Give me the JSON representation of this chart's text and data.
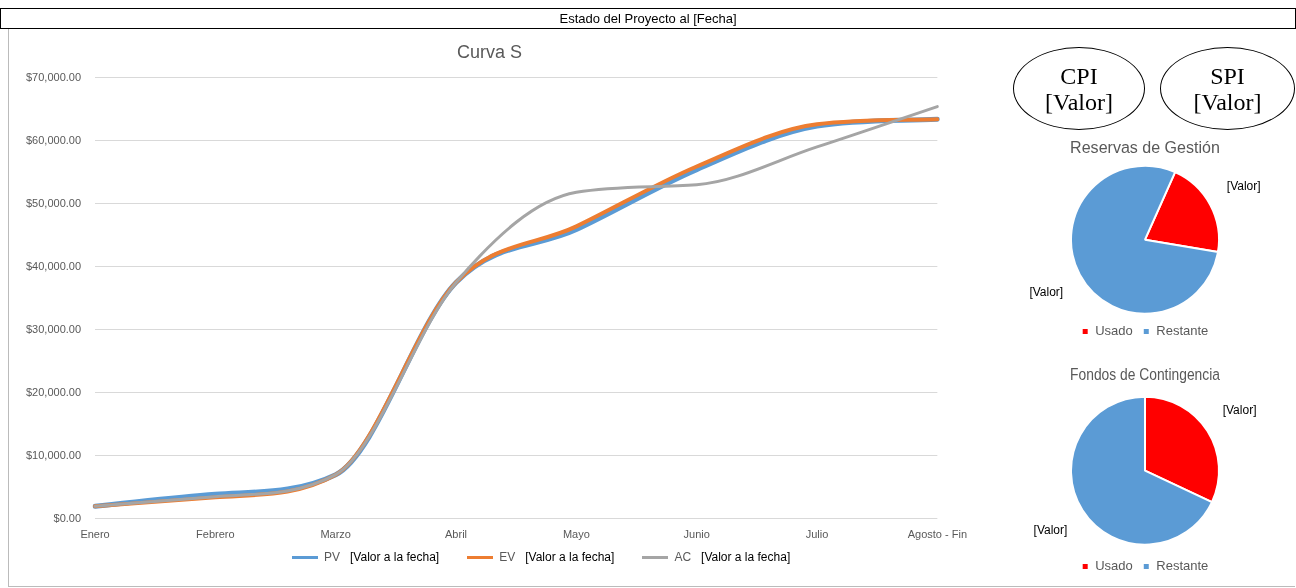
{
  "chart_data": [
    {
      "type": "other",
      "title": "Estado del Proyecto al [Fecha]",
      "annotations": [
        "CPI [Valor]",
        "SPI [Valor]"
      ]
    },
    {
      "type": "line",
      "title": "Curva S",
      "categories": [
        "Enero",
        "Febrero",
        "Marzo",
        "Abril",
        "Mayo",
        "Junio",
        "Julio",
        "Agosto - Fin"
      ],
      "series": [
        {
          "name": "PV",
          "color": "#5b9bd5",
          "values": [
            2000,
            3900,
            7000,
            37500,
            45900,
            55400,
            62300,
            63400
          ]
        },
        {
          "name": "EV",
          "color": "#ed7d31",
          "values": [
            2000,
            3400,
            7000,
            37500,
            46400,
            55900,
            62600,
            63400
          ]
        },
        {
          "name": "AC",
          "color": "#a5a5a5",
          "values": [
            2000,
            3500,
            7000,
            37500,
            51800,
            53000,
            59000,
            65400
          ]
        }
      ],
      "annotations": [
        "[Valor a la fecha]",
        "[Valor a la fecha]",
        "[Valor a la fecha]"
      ],
      "ylim": [
        0,
        70000
      ],
      "yticks": [
        {
          "value": 0,
          "label": "$0.00"
        },
        {
          "value": 10000,
          "label": "$10,000.00"
        },
        {
          "value": 20000,
          "label": "$20,000.00"
        },
        {
          "value": 30000,
          "label": "$30,000.00"
        },
        {
          "value": 40000,
          "label": "$40,000.00"
        },
        {
          "value": 50000,
          "label": "$50,000.00"
        },
        {
          "value": 60000,
          "label": "$60,000.00"
        },
        {
          "value": 70000,
          "label": "$70,000.00"
        }
      ],
      "grid": "y",
      "legend": "bottom",
      "marker": "none"
    },
    {
      "type": "pie",
      "title": "Reservas de Gestión",
      "categories": [
        "Usado",
        "Restante"
      ],
      "values": [
        21,
        79
      ],
      "colors": [
        "#ff0000",
        "#5b9bd5"
      ],
      "value_labels": [
        "[Valor]",
        "[Valor]"
      ],
      "legend": "bottom"
    },
    {
      "type": "pie",
      "title": "Fondos de Contingencia",
      "categories": [
        "Usado",
        "Restante"
      ],
      "values": [
        32,
        68
      ],
      "colors": [
        "#ff0000",
        "#5b9bd5"
      ],
      "value_labels": [
        "[Valor]",
        "[Valor]"
      ],
      "legend": "bottom"
    }
  ]
}
